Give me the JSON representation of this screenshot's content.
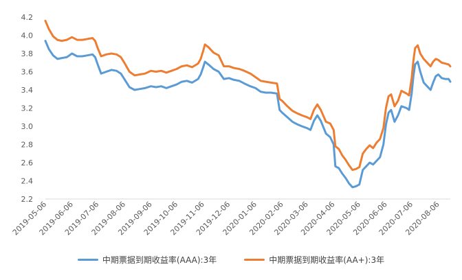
{
  "chart_data": {
    "type": "line",
    "title": "",
    "xlabel": "",
    "ylabel": "",
    "ylim": [
      2.2,
      4.2
    ],
    "yticks": [
      "2.2",
      "2.4",
      "2.6",
      "2.8",
      "3.0",
      "3.2",
      "3.4",
      "3.6",
      "3.8",
      "4.0",
      "4.2"
    ],
    "grid": false,
    "legend_position": "bottom",
    "x": [
      "2019-05-06",
      "2019-06-06",
      "2019-07-06",
      "2019-08-06",
      "2019-09-06",
      "2019-10-06",
      "2019-11-06",
      "2019-12-06",
      "2020-01-06",
      "2020-02-06",
      "2020-03-06",
      "2020-04-06",
      "2020-05-06",
      "2020-06-06",
      "2020-07-06",
      "2020-08-06"
    ],
    "x_end": "2020-08-20",
    "series": [
      {
        "name": "中期票据到期收益率(AAA):3年",
        "color": "#5b9bd5",
        "points": [
          [
            "2019-05-06",
            3.94
          ],
          [
            "2019-05-10",
            3.85
          ],
          [
            "2019-05-15",
            3.78
          ],
          [
            "2019-05-20",
            3.74
          ],
          [
            "2019-05-25",
            3.75
          ],
          [
            "2019-05-31",
            3.76
          ],
          [
            "2019-06-06",
            3.8
          ],
          [
            "2019-06-12",
            3.77
          ],
          [
            "2019-06-18",
            3.77
          ],
          [
            "2019-06-24",
            3.78
          ],
          [
            "2019-06-30",
            3.79
          ],
          [
            "2019-07-03",
            3.76
          ],
          [
            "2019-07-06",
            3.68
          ],
          [
            "2019-07-10",
            3.58
          ],
          [
            "2019-07-16",
            3.6
          ],
          [
            "2019-07-22",
            3.62
          ],
          [
            "2019-07-28",
            3.61
          ],
          [
            "2019-08-02",
            3.58
          ],
          [
            "2019-08-06",
            3.52
          ],
          [
            "2019-08-12",
            3.43
          ],
          [
            "2019-08-18",
            3.4
          ],
          [
            "2019-08-24",
            3.41
          ],
          [
            "2019-08-30",
            3.42
          ],
          [
            "2019-09-06",
            3.44
          ],
          [
            "2019-09-12",
            3.43
          ],
          [
            "2019-09-18",
            3.44
          ],
          [
            "2019-09-24",
            3.42
          ],
          [
            "2019-09-30",
            3.44
          ],
          [
            "2019-10-06",
            3.46
          ],
          [
            "2019-10-12",
            3.49
          ],
          [
            "2019-10-18",
            3.5
          ],
          [
            "2019-10-24",
            3.48
          ],
          [
            "2019-10-31",
            3.52
          ],
          [
            "2019-11-03",
            3.57
          ],
          [
            "2019-11-06",
            3.65
          ],
          [
            "2019-11-08",
            3.71
          ],
          [
            "2019-11-12",
            3.68
          ],
          [
            "2019-11-18",
            3.63
          ],
          [
            "2019-11-24",
            3.6
          ],
          [
            "2019-11-30",
            3.52
          ],
          [
            "2019-12-06",
            3.53
          ],
          [
            "2019-12-12",
            3.51
          ],
          [
            "2019-12-18",
            3.5
          ],
          [
            "2019-12-24",
            3.47
          ],
          [
            "2019-12-31",
            3.44
          ],
          [
            "2020-01-06",
            3.42
          ],
          [
            "2020-01-12",
            3.38
          ],
          [
            "2020-01-18",
            3.37
          ],
          [
            "2020-01-24",
            3.37
          ],
          [
            "2020-01-31",
            3.36
          ],
          [
            "2020-02-03",
            3.18
          ],
          [
            "2020-02-06",
            3.15
          ],
          [
            "2020-02-12",
            3.1
          ],
          [
            "2020-02-18",
            3.05
          ],
          [
            "2020-02-24",
            3.02
          ],
          [
            "2020-02-29",
            3.0
          ],
          [
            "2020-03-06",
            2.98
          ],
          [
            "2020-03-10",
            2.96
          ],
          [
            "2020-03-14",
            3.06
          ],
          [
            "2020-03-18",
            3.12
          ],
          [
            "2020-03-22",
            3.06
          ],
          [
            "2020-03-28",
            2.92
          ],
          [
            "2020-04-02",
            2.88
          ],
          [
            "2020-04-06",
            2.8
          ],
          [
            "2020-04-08",
            2.56
          ],
          [
            "2020-04-12",
            2.54
          ],
          [
            "2020-04-16",
            2.48
          ],
          [
            "2020-04-20",
            2.43
          ],
          [
            "2020-04-24",
            2.37
          ],
          [
            "2020-04-28",
            2.33
          ],
          [
            "2020-05-02",
            2.34
          ],
          [
            "2020-05-06",
            2.36
          ],
          [
            "2020-05-10",
            2.52
          ],
          [
            "2020-05-14",
            2.56
          ],
          [
            "2020-05-18",
            2.6
          ],
          [
            "2020-05-22",
            2.58
          ],
          [
            "2020-05-26",
            2.62
          ],
          [
            "2020-05-30",
            2.66
          ],
          [
            "2020-06-03",
            2.8
          ],
          [
            "2020-06-06",
            3.02
          ],
          [
            "2020-06-09",
            3.15
          ],
          [
            "2020-06-12",
            3.18
          ],
          [
            "2020-06-16",
            3.05
          ],
          [
            "2020-06-20",
            3.12
          ],
          [
            "2020-06-24",
            3.22
          ],
          [
            "2020-06-30",
            3.2
          ],
          [
            "2020-07-03",
            3.18
          ],
          [
            "2020-07-06",
            3.36
          ],
          [
            "2020-07-08",
            3.55
          ],
          [
            "2020-07-10",
            3.68
          ],
          [
            "2020-07-13",
            3.71
          ],
          [
            "2020-07-16",
            3.6
          ],
          [
            "2020-07-20",
            3.48
          ],
          [
            "2020-07-24",
            3.44
          ],
          [
            "2020-07-28",
            3.4
          ],
          [
            "2020-07-31",
            3.48
          ],
          [
            "2020-08-03",
            3.55
          ],
          [
            "2020-08-06",
            3.57
          ],
          [
            "2020-08-10",
            3.53
          ],
          [
            "2020-08-14",
            3.52
          ],
          [
            "2020-08-18",
            3.52
          ],
          [
            "2020-08-20",
            3.49
          ]
        ]
      },
      {
        "name": "中期票据到期收益率(AA+):3年",
        "color": "#ed7d31",
        "points": [
          [
            "2019-05-06",
            4.16
          ],
          [
            "2019-05-10",
            4.07
          ],
          [
            "2019-05-15",
            3.99
          ],
          [
            "2019-05-20",
            3.95
          ],
          [
            "2019-05-25",
            3.94
          ],
          [
            "2019-05-31",
            3.95
          ],
          [
            "2019-06-06",
            3.98
          ],
          [
            "2019-06-12",
            3.95
          ],
          [
            "2019-06-18",
            3.95
          ],
          [
            "2019-06-24",
            3.96
          ],
          [
            "2019-06-30",
            3.97
          ],
          [
            "2019-07-03",
            3.94
          ],
          [
            "2019-07-06",
            3.86
          ],
          [
            "2019-07-10",
            3.77
          ],
          [
            "2019-07-16",
            3.79
          ],
          [
            "2019-07-22",
            3.8
          ],
          [
            "2019-07-28",
            3.79
          ],
          [
            "2019-08-02",
            3.76
          ],
          [
            "2019-08-06",
            3.7
          ],
          [
            "2019-08-12",
            3.6
          ],
          [
            "2019-08-18",
            3.56
          ],
          [
            "2019-08-24",
            3.57
          ],
          [
            "2019-08-30",
            3.58
          ],
          [
            "2019-09-06",
            3.61
          ],
          [
            "2019-09-12",
            3.6
          ],
          [
            "2019-09-18",
            3.61
          ],
          [
            "2019-09-24",
            3.59
          ],
          [
            "2019-09-30",
            3.61
          ],
          [
            "2019-10-06",
            3.63
          ],
          [
            "2019-10-12",
            3.66
          ],
          [
            "2019-10-18",
            3.67
          ],
          [
            "2019-10-24",
            3.65
          ],
          [
            "2019-10-31",
            3.69
          ],
          [
            "2019-11-03",
            3.74
          ],
          [
            "2019-11-06",
            3.83
          ],
          [
            "2019-11-08",
            3.9
          ],
          [
            "2019-11-12",
            3.87
          ],
          [
            "2019-11-18",
            3.81
          ],
          [
            "2019-11-24",
            3.78
          ],
          [
            "2019-11-30",
            3.66
          ],
          [
            "2019-12-06",
            3.66
          ],
          [
            "2019-12-12",
            3.64
          ],
          [
            "2019-12-18",
            3.63
          ],
          [
            "2019-12-24",
            3.61
          ],
          [
            "2019-12-31",
            3.58
          ],
          [
            "2020-01-06",
            3.54
          ],
          [
            "2020-01-12",
            3.5
          ],
          [
            "2020-01-18",
            3.49
          ],
          [
            "2020-01-24",
            3.48
          ],
          [
            "2020-01-31",
            3.47
          ],
          [
            "2020-02-03",
            3.3
          ],
          [
            "2020-02-06",
            3.28
          ],
          [
            "2020-02-12",
            3.22
          ],
          [
            "2020-02-18",
            3.17
          ],
          [
            "2020-02-24",
            3.14
          ],
          [
            "2020-02-29",
            3.12
          ],
          [
            "2020-03-06",
            3.1
          ],
          [
            "2020-03-10",
            3.08
          ],
          [
            "2020-03-14",
            3.18
          ],
          [
            "2020-03-18",
            3.24
          ],
          [
            "2020-03-22",
            3.18
          ],
          [
            "2020-03-28",
            3.05
          ],
          [
            "2020-04-02",
            3.03
          ],
          [
            "2020-04-06",
            2.96
          ],
          [
            "2020-04-08",
            2.78
          ],
          [
            "2020-04-12",
            2.75
          ],
          [
            "2020-04-16",
            2.68
          ],
          [
            "2020-04-20",
            2.63
          ],
          [
            "2020-04-24",
            2.57
          ],
          [
            "2020-04-28",
            2.52
          ],
          [
            "2020-05-02",
            2.53
          ],
          [
            "2020-05-06",
            2.55
          ],
          [
            "2020-05-10",
            2.7
          ],
          [
            "2020-05-14",
            2.75
          ],
          [
            "2020-05-18",
            2.79
          ],
          [
            "2020-05-22",
            2.76
          ],
          [
            "2020-05-26",
            2.82
          ],
          [
            "2020-05-30",
            2.86
          ],
          [
            "2020-06-03",
            2.98
          ],
          [
            "2020-06-06",
            3.2
          ],
          [
            "2020-06-09",
            3.33
          ],
          [
            "2020-06-12",
            3.35
          ],
          [
            "2020-06-16",
            3.22
          ],
          [
            "2020-06-20",
            3.28
          ],
          [
            "2020-06-24",
            3.39
          ],
          [
            "2020-06-30",
            3.36
          ],
          [
            "2020-07-03",
            3.34
          ],
          [
            "2020-07-06",
            3.53
          ],
          [
            "2020-07-08",
            3.72
          ],
          [
            "2020-07-10",
            3.86
          ],
          [
            "2020-07-13",
            3.89
          ],
          [
            "2020-07-16",
            3.8
          ],
          [
            "2020-07-20",
            3.74
          ],
          [
            "2020-07-24",
            3.7
          ],
          [
            "2020-07-28",
            3.66
          ],
          [
            "2020-07-31",
            3.71
          ],
          [
            "2020-08-03",
            3.74
          ],
          [
            "2020-08-06",
            3.73
          ],
          [
            "2020-08-10",
            3.7
          ],
          [
            "2020-08-14",
            3.69
          ],
          [
            "2020-08-18",
            3.68
          ],
          [
            "2020-08-20",
            3.66
          ]
        ]
      }
    ]
  }
}
